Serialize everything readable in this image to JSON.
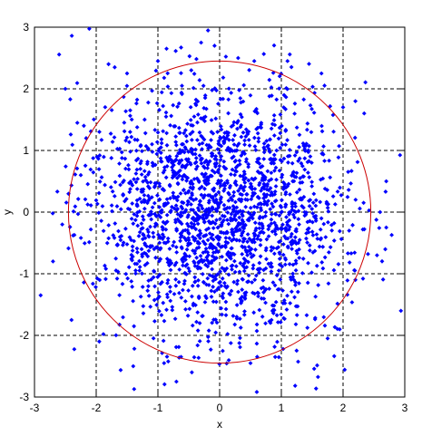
{
  "chart_data": {
    "type": "scatter",
    "title": "",
    "xlabel": "x",
    "ylabel": "y",
    "xlim": [
      -3,
      3
    ],
    "ylim": [
      -3,
      3
    ],
    "xticks": [
      -3,
      -2,
      -1,
      0,
      1,
      2,
      3
    ],
    "yticks": [
      -3,
      -2,
      -1,
      0,
      1,
      2,
      3
    ],
    "xtick_labels": [
      "-3",
      "-2",
      "-1",
      "0",
      "1",
      "2",
      "3"
    ],
    "ytick_labels": [
      "-3",
      "-2",
      "-1",
      "0",
      "1",
      "2",
      "3"
    ],
    "grid": true,
    "legend": "none",
    "colors": {
      "points": "#0000ff",
      "circle": "#cc0000",
      "grid": "#000000"
    },
    "marker": "diamond",
    "distribution": {
      "kind": "bivariate normal",
      "center": [
        0,
        0
      ],
      "std": [
        1,
        1
      ],
      "n_points": 2000
    },
    "circle": {
      "center": [
        0,
        0
      ],
      "radius": 2.45
    },
    "notable_points": [
      {
        "x": -2.9,
        "y": -1.35
      },
      {
        "x": -2.5,
        "y": 2.0
      },
      {
        "x": -2.4,
        "y": -1.75
      },
      {
        "x": -2.2,
        "y": 1.4
      },
      {
        "x": -1.8,
        "y": 2.4
      },
      {
        "x": -1.7,
        "y": 2.35
      },
      {
        "x": -1.5,
        "y": 2.25
      },
      {
        "x": -1.4,
        "y": -2.5
      },
      {
        "x": -1.0,
        "y": 2.45
      },
      {
        "x": -0.3,
        "y": 2.75
      },
      {
        "x": -0.45,
        "y": -2.6
      },
      {
        "x": -0.7,
        "y": -2.75
      },
      {
        "x": 0.3,
        "y": 2.5
      },
      {
        "x": 1.1,
        "y": 2.45
      },
      {
        "x": 1.65,
        "y": 2.25
      },
      {
        "x": 1.75,
        "y": -2.05
      },
      {
        "x": 2.0,
        "y": 1.7
      },
      {
        "x": 2.2,
        "y": 1.8
      },
      {
        "x": 2.6,
        "y": 0.0
      },
      {
        "x": 2.7,
        "y": 0.5
      },
      {
        "x": 2.7,
        "y": -0.25
      },
      {
        "x": 2.55,
        "y": -0.7
      },
      {
        "x": 2.2,
        "y": -1.1
      },
      {
        "x": -2.7,
        "y": -0.8
      },
      {
        "x": -2.55,
        "y": -0.2
      },
      {
        "x": -2.25,
        "y": 0.6
      },
      {
        "x": -1.95,
        "y": -2.1
      },
      {
        "x": 0.9,
        "y": -2.35
      },
      {
        "x": 0.5,
        "y": -2.45
      },
      {
        "x": -0.9,
        "y": -2.45
      }
    ]
  }
}
